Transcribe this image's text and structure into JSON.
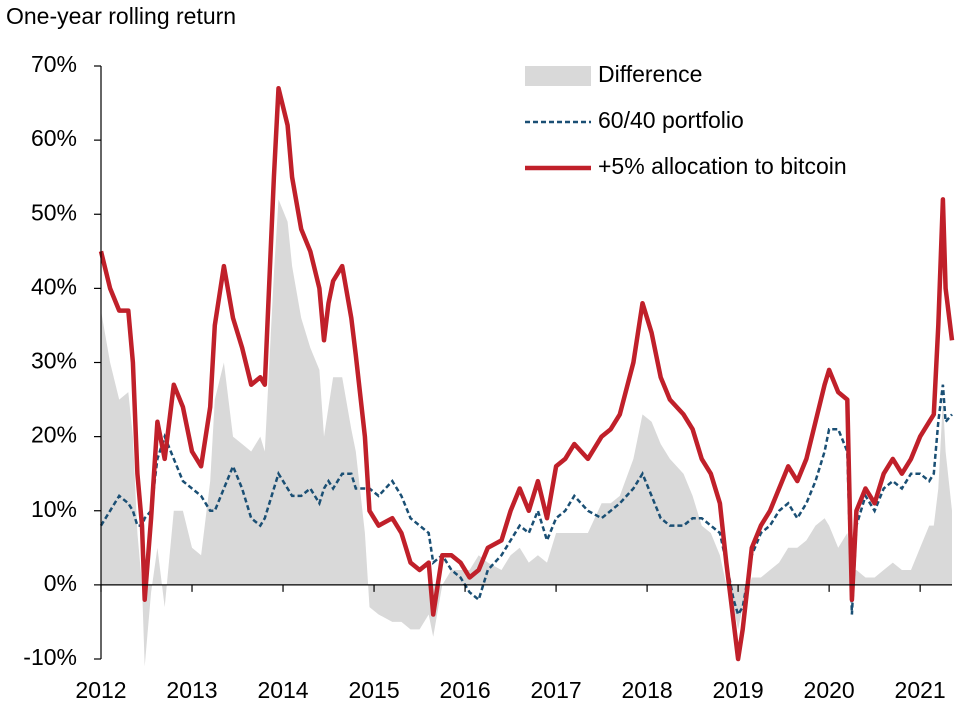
{
  "chart_data": {
    "type": "line",
    "title": "One-year rolling return",
    "x": [
      2012.0,
      2012.1,
      2012.2,
      2012.3,
      2012.35,
      2012.4,
      2012.45,
      2012.48,
      2012.55,
      2012.62,
      2012.7,
      2012.8,
      2012.9,
      2013.0,
      2013.1,
      2013.2,
      2013.25,
      2013.35,
      2013.45,
      2013.55,
      2013.65,
      2013.75,
      2013.8,
      2013.9,
      2013.95,
      2014.05,
      2014.1,
      2014.2,
      2014.3,
      2014.4,
      2014.45,
      2014.5,
      2014.55,
      2014.65,
      2014.75,
      2014.8,
      2014.9,
      2014.95,
      2015.05,
      2015.2,
      2015.3,
      2015.4,
      2015.5,
      2015.6,
      2015.65,
      2015.75,
      2015.85,
      2015.95,
      2016.05,
      2016.15,
      2016.25,
      2016.4,
      2016.5,
      2016.6,
      2016.7,
      2016.8,
      2016.9,
      2017.0,
      2017.1,
      2017.2,
      2017.35,
      2017.5,
      2017.6,
      2017.7,
      2017.85,
      2017.95,
      2018.05,
      2018.15,
      2018.25,
      2018.4,
      2018.5,
      2018.6,
      2018.7,
      2018.8,
      2018.87,
      2018.95,
      2019.0,
      2019.05,
      2019.15,
      2019.25,
      2019.35,
      2019.45,
      2019.55,
      2019.65,
      2019.75,
      2019.85,
      2019.95,
      2020.0,
      2020.1,
      2020.2,
      2020.25,
      2020.3,
      2020.4,
      2020.5,
      2020.6,
      2020.7,
      2020.8,
      2020.9,
      2021.0,
      2021.1,
      2021.15,
      2021.2,
      2021.25,
      2021.28,
      2021.35
    ],
    "series": [
      {
        "name": "Difference",
        "style": "area",
        "color": "#d9d9d9",
        "values": [
          37,
          30,
          25,
          26,
          20,
          7,
          0,
          -11,
          -1,
          5,
          -3,
          10,
          10,
          5,
          4,
          14,
          25,
          30,
          20,
          19,
          18,
          20,
          18,
          42,
          52,
          49,
          43,
          36,
          32,
          29,
          20,
          24,
          28,
          28,
          21,
          18,
          7,
          -3,
          -4,
          -5,
          -5,
          -6,
          -6,
          -4,
          -7,
          0,
          2,
          2,
          2,
          4,
          3,
          2,
          4,
          5,
          3,
          4,
          3,
          7,
          7,
          7,
          7,
          11,
          11,
          12,
          17,
          23,
          22,
          19,
          17,
          15,
          12,
          8,
          7,
          4,
          0,
          -3,
          -6,
          -3,
          1,
          1,
          2,
          3,
          5,
          5,
          6,
          8,
          9,
          8,
          5,
          7,
          2,
          2,
          1,
          1,
          2,
          3,
          2,
          2,
          5,
          8,
          8,
          13,
          25,
          18,
          10
        ]
      },
      {
        "name": "60/40 portfolio",
        "style": "dashed",
        "color": "#1a4f74",
        "values": [
          8,
          10,
          12,
          11,
          10,
          8,
          8,
          9,
          10,
          17,
          20,
          17,
          14,
          13,
          12,
          10,
          10,
          13,
          16,
          13,
          9,
          8,
          9,
          13,
          15,
          13,
          12,
          12,
          13,
          11,
          13,
          14,
          13,
          15,
          15,
          13,
          13,
          13,
          12,
          14,
          12,
          9,
          8,
          7,
          3,
          4,
          2,
          1,
          -1,
          -2,
          2,
          4,
          6,
          8,
          7,
          10,
          6,
          9,
          10,
          12,
          10,
          9,
          10,
          11,
          13,
          15,
          12,
          9,
          8,
          8,
          9,
          9,
          8,
          7,
          3,
          -2,
          -4,
          -3,
          4,
          7,
          8,
          10,
          11,
          9,
          11,
          14,
          18,
          21,
          21,
          18,
          -4,
          8,
          12,
          10,
          13,
          14,
          13,
          15,
          15,
          14,
          15,
          22,
          27,
          22,
          23
        ]
      },
      {
        "name": "+5% allocation to bitcoin",
        "style": "solid",
        "color": "#c0202a",
        "values": [
          45,
          40,
          37,
          37,
          30,
          15,
          8,
          -2,
          9,
          22,
          17,
          27,
          24,
          18,
          16,
          24,
          35,
          43,
          36,
          32,
          27,
          28,
          27,
          55,
          67,
          62,
          55,
          48,
          45,
          40,
          33,
          38,
          41,
          43,
          36,
          31,
          20,
          10,
          8,
          9,
          7,
          3,
          2,
          3,
          -4,
          4,
          4,
          3,
          1,
          2,
          5,
          6,
          10,
          13,
          10,
          14,
          9,
          16,
          17,
          19,
          17,
          20,
          21,
          23,
          30,
          38,
          34,
          28,
          25,
          23,
          21,
          17,
          15,
          11,
          3,
          -5,
          -10,
          -6,
          5,
          8,
          10,
          13,
          16,
          14,
          17,
          22,
          27,
          29,
          26,
          25,
          -2,
          10,
          13,
          11,
          15,
          17,
          15,
          17,
          20,
          22,
          23,
          35,
          52,
          40,
          33
        ]
      }
    ],
    "xlim": [
      2012,
      2021.35
    ],
    "xticks": [
      2012,
      2013,
      2014,
      2015,
      2016,
      2017,
      2018,
      2019,
      2020,
      2021
    ],
    "ylim": [
      -10,
      70
    ],
    "yticks": [
      {
        "value": -10,
        "label": "-10%"
      },
      {
        "value": 0,
        "label": "0%"
      },
      {
        "value": 10,
        "label": "10%"
      },
      {
        "value": 20,
        "label": "20%"
      },
      {
        "value": 30,
        "label": "30%"
      },
      {
        "value": 40,
        "label": "40%"
      },
      {
        "value": 50,
        "label": "50%"
      },
      {
        "value": 60,
        "label": "60%"
      },
      {
        "value": 70,
        "label": "70%"
      }
    ],
    "grid": false,
    "legend": "upper right"
  }
}
